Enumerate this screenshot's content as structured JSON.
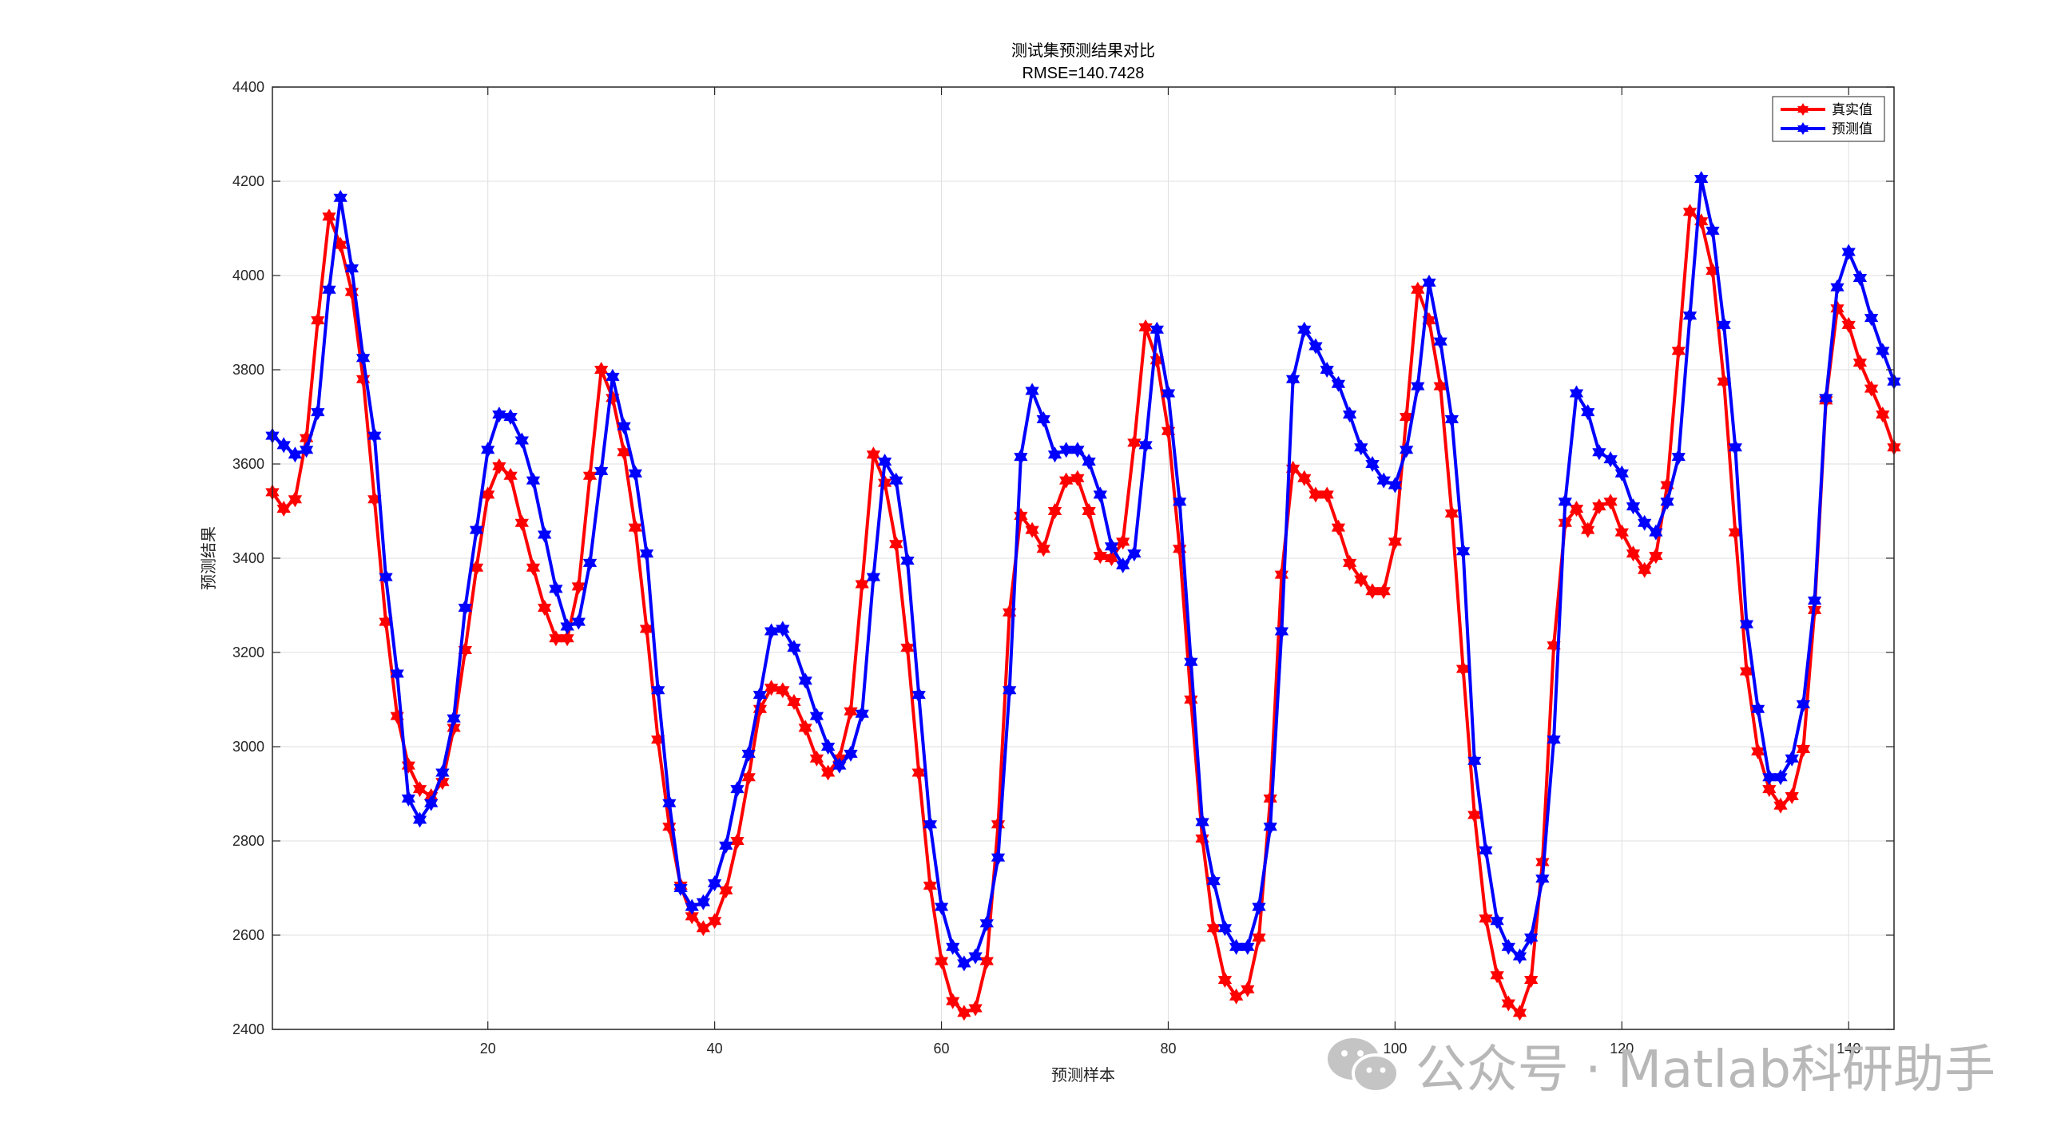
{
  "watermark": {
    "text": "公众号 · Matlab科研助手",
    "icon": "wechat-icon"
  },
  "colors": {
    "true": "#ff0000",
    "pred": "#0000ff",
    "grid": "#dfdfdf",
    "axis": "#262626"
  },
  "chart_data": {
    "type": "line",
    "title": "测试集预测结果对比",
    "subtitle": "RMSE=140.7428",
    "xlabel": "预测样本",
    "ylabel": "预测结果",
    "xlim": [
      1,
      144
    ],
    "ylim": [
      2400,
      4400
    ],
    "xticks": [
      20,
      40,
      60,
      80,
      100,
      120,
      140
    ],
    "yticks": [
      2400,
      2600,
      2800,
      3000,
      3200,
      3400,
      3600,
      3800,
      4000,
      4200,
      4400
    ],
    "grid": true,
    "legend_position": "top-right",
    "marker": "hexagram",
    "x": [
      1,
      2,
      3,
      4,
      5,
      6,
      7,
      8,
      9,
      10,
      11,
      12,
      13,
      14,
      15,
      16,
      17,
      18,
      19,
      20,
      21,
      22,
      23,
      24,
      25,
      26,
      27,
      28,
      29,
      30,
      31,
      32,
      33,
      34,
      35,
      36,
      37,
      38,
      39,
      40,
      41,
      42,
      43,
      44,
      45,
      46,
      47,
      48,
      49,
      50,
      51,
      52,
      53,
      54,
      55,
      56,
      57,
      58,
      59,
      60,
      61,
      62,
      63,
      64,
      65,
      66,
      67,
      68,
      69,
      70,
      71,
      72,
      73,
      74,
      75,
      76,
      77,
      78,
      79,
      80,
      81,
      82,
      83,
      84,
      85,
      86,
      87,
      88,
      89,
      90,
      91,
      92,
      93,
      94,
      95,
      96,
      97,
      98,
      99,
      100,
      101,
      102,
      103,
      104,
      105,
      106,
      107,
      108,
      109,
      110,
      111,
      112,
      113,
      114,
      115,
      116,
      117,
      118,
      119,
      120,
      121,
      122,
      123,
      124,
      125,
      126,
      127,
      128,
      129,
      130,
      131,
      132,
      133,
      134,
      135,
      136,
      137,
      138,
      139,
      140,
      141,
      142,
      143,
      144
    ],
    "series": [
      {
        "name": "真实值",
        "color": "#ff0000",
        "values": [
          3540,
          3505,
          3525,
          3655,
          3905,
          4125,
          4065,
          3965,
          3780,
          3525,
          3265,
          3065,
          2960,
          2910,
          2895,
          2925,
          3040,
          3205,
          3380,
          3535,
          3595,
          3575,
          3475,
          3380,
          3295,
          3230,
          3230,
          3340,
          3575,
          3800,
          3740,
          3625,
          3465,
          3250,
          3015,
          2830,
          2705,
          2640,
          2615,
          2630,
          2695,
          2800,
          2935,
          3080,
          3125,
          3120,
          3095,
          3040,
          2975,
          2945,
          2975,
          3075,
          3345,
          3620,
          3560,
          3430,
          3210,
          2945,
          2705,
          2545,
          2460,
          2435,
          2445,
          2545,
          2835,
          3285,
          3490,
          3460,
          3420,
          3500,
          3565,
          3570,
          3500,
          3405,
          3400,
          3435,
          3645,
          3890,
          3820,
          3670,
          3420,
          3100,
          2805,
          2615,
          2505,
          2470,
          2485,
          2595,
          2890,
          3365,
          3590,
          3570,
          3535,
          3535,
          3465,
          3390,
          3355,
          3330,
          3330,
          3435,
          3700,
          3970,
          3905,
          3765,
          3495,
          3165,
          2855,
          2635,
          2515,
          2455,
          2435,
          2505,
          2755,
          3215,
          3475,
          3505,
          3460,
          3510,
          3520,
          3455,
          3410,
          3375,
          3405,
          3555,
          3840,
          4135,
          4115,
          4010,
          3775,
          3455,
          3160,
          2990,
          2910,
          2875,
          2895,
          2995,
          3290,
          3735,
          3930,
          3895,
          3815,
          3760,
          3705,
          3635
        ]
      },
      {
        "name": "预测值",
        "color": "#0000ff",
        "values": [
          3660,
          3640,
          3620,
          3630,
          3710,
          3970,
          4165,
          4015,
          3825,
          3660,
          3360,
          3155,
          2890,
          2845,
          2880,
          2945,
          3060,
          3295,
          3460,
          3630,
          3705,
          3700,
          3650,
          3565,
          3450,
          3335,
          3255,
          3265,
          3390,
          3585,
          3785,
          3680,
          3580,
          3410,
          3120,
          2880,
          2700,
          2660,
          2670,
          2710,
          2790,
          2910,
          2985,
          3110,
          3245,
          3250,
          3210,
          3140,
          3065,
          3000,
          2960,
          2985,
          3070,
          3360,
          3605,
          3565,
          3395,
          3110,
          2835,
          2660,
          2575,
          2540,
          2555,
          2625,
          2765,
          3120,
          3615,
          3755,
          3695,
          3620,
          3630,
          3630,
          3605,
          3535,
          3425,
          3385,
          3410,
          3640,
          3885,
          3750,
          3520,
          3180,
          2840,
          2715,
          2615,
          2575,
          2575,
          2660,
          2830,
          3245,
          3780,
          3885,
          3850,
          3800,
          3770,
          3705,
          3635,
          3600,
          3565,
          3555,
          3630,
          3765,
          3985,
          3860,
          3695,
          3415,
          2970,
          2780,
          2630,
          2575,
          2555,
          2595,
          2720,
          3015,
          3520,
          3750,
          3710,
          3625,
          3610,
          3580,
          3510,
          3475,
          3455,
          3520,
          3615,
          3915,
          4205,
          4095,
          3895,
          3635,
          3260,
          3080,
          2935,
          2935,
          2975,
          3090,
          3310,
          3740,
          3975,
          4050,
          3995,
          3910,
          3840,
          3775
        ]
      }
    ]
  }
}
